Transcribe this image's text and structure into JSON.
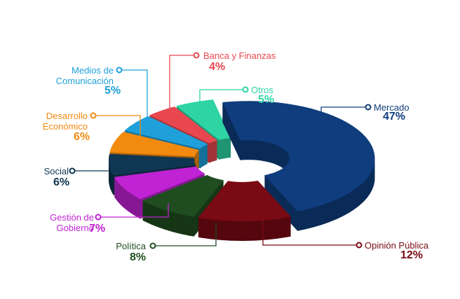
{
  "chart_data": {
    "type": "pie",
    "categories": [
      "Mercado",
      "Opinión Pública",
      "Política",
      "Gestión de Gobierno",
      "Social",
      "Desarrollo Económico",
      "Medios de Comunicación",
      "Banca y Finanzas",
      "Otros"
    ],
    "values": [
      47,
      12,
      8,
      7,
      6,
      6,
      5,
      4,
      5
    ],
    "value_labels": [
      "47%",
      "12%",
      "8%",
      "7%",
      "6%",
      "6%",
      "5%",
      "4%",
      "5%"
    ],
    "colors": [
      "#0f3d7d",
      "#7a0a14",
      "#1f4d20",
      "#c023d4",
      "#0f3652",
      "#f28a10",
      "#1fa0da",
      "#e8474f",
      "#2fd4a4"
    ]
  }
}
